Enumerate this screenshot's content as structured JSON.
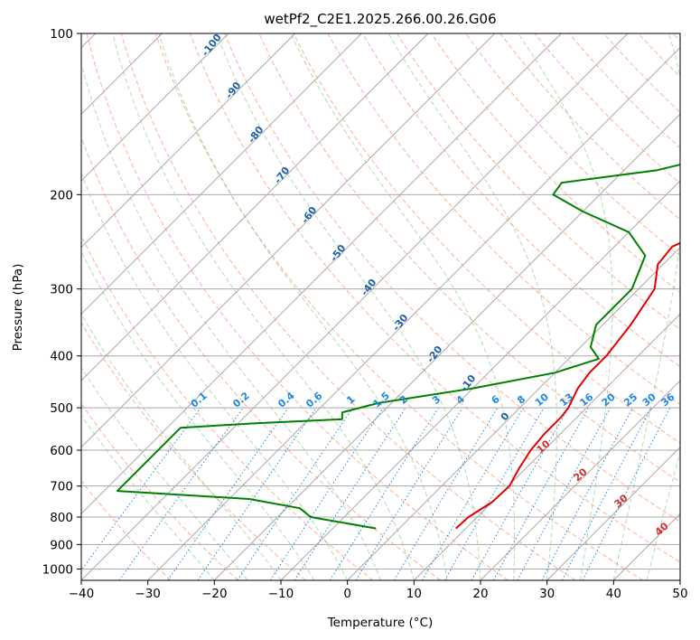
{
  "chart_data": {
    "type": "skew-t log-p",
    "title": "wetPf2_C2E1.2025.266.00.26.G06",
    "xlabel": "Temperature (°C)",
    "ylabel": "Pressure (hPa)",
    "xlim": [
      -40,
      50
    ],
    "ylim": [
      1050,
      100
    ],
    "y_scale": "log",
    "x_ticks": [
      -40,
      -30,
      -20,
      -10,
      0,
      10,
      20,
      30,
      40,
      50
    ],
    "y_ticks": [
      100,
      200,
      300,
      400,
      500,
      600,
      700,
      800,
      900,
      1000
    ],
    "grid": true,
    "colors": {
      "temperature": "#e50000",
      "dewpoint": "#008000",
      "isotherm": "#a0a0a0",
      "dry_adiabat": "#ff9e7a",
      "moist_adiabat": "#6fbf6f",
      "mixing_ratio": "#1e88e5",
      "isohume": "#c8a27a",
      "dry_label": "#1f5fa8",
      "sat_label": "#d32f2f"
    },
    "mixing_ratio_labels": [
      "0.1",
      "0.2",
      "0.4",
      "0.6",
      "1",
      "1.5",
      "2",
      "3",
      "4",
      "6",
      "8",
      "10",
      "13",
      "16",
      "20",
      "25",
      "30",
      "36"
    ],
    "dry_adiabat_labels": [
      "-100",
      "-90",
      "-80",
      "-70",
      "-60",
      "-50",
      "-40",
      "-30",
      "-20",
      "-10",
      "0"
    ],
    "saturated_labels": [
      "10",
      "20",
      "30",
      "40"
    ],
    "series": [
      {
        "role": "temperature",
        "color": "#e50000",
        "points": [
          {
            "p": 840,
            "t": 8.5
          },
          {
            "p": 800,
            "t": 8.7
          },
          {
            "p": 750,
            "t": 10.0
          },
          {
            "p": 700,
            "t": 10.2
          },
          {
            "p": 650,
            "t": 9.0
          },
          {
            "p": 600,
            "t": 8.0
          },
          {
            "p": 560,
            "t": 7.6
          },
          {
            "p": 520,
            "t": 7.6
          },
          {
            "p": 500,
            "t": 7.3
          },
          {
            "p": 460,
            "t": 5.8
          },
          {
            "p": 430,
            "t": 5.2
          },
          {
            "p": 400,
            "t": 5.2
          },
          {
            "p": 350,
            "t": 4.2
          },
          {
            "p": 300,
            "t": 2.4
          },
          {
            "p": 270,
            "t": -0.8
          },
          {
            "p": 250,
            "t": -1.3
          },
          {
            "p": 230,
            "t": 2.2
          },
          {
            "p": 200,
            "t": 10.0
          },
          {
            "p": 180,
            "t": 11.5
          },
          {
            "p": 160,
            "t": 9.0
          },
          {
            "p": 145,
            "t": 11.0
          },
          {
            "p": 130,
            "t": 17.0
          },
          {
            "p": 115,
            "t": 21.0
          },
          {
            "p": 100,
            "t": 22.5
          }
        ]
      },
      {
        "role": "dewpoint",
        "color": "#008000",
        "points": [
          {
            "p": 840,
            "t": -3.5
          },
          {
            "p": 800,
            "t": -15.0
          },
          {
            "p": 770,
            "t": -18.0
          },
          {
            "p": 740,
            "t": -27.0
          },
          {
            "p": 715,
            "t": -48.0
          },
          {
            "p": 545,
            "t": -48.0
          },
          {
            "p": 535,
            "t": -38.0
          },
          {
            "p": 525,
            "t": -25.0
          },
          {
            "p": 510,
            "t": -26.0
          },
          {
            "p": 490,
            "t": -22.0
          },
          {
            "p": 460,
            "t": -10.0
          },
          {
            "p": 430,
            "t": 0.0
          },
          {
            "p": 405,
            "t": 4.5
          },
          {
            "p": 385,
            "t": 1.5
          },
          {
            "p": 350,
            "t": -1.0
          },
          {
            "p": 300,
            "t": -1.0
          },
          {
            "p": 260,
            "t": -4.0
          },
          {
            "p": 235,
            "t": -10.0
          },
          {
            "p": 215,
            "t": -20.0
          },
          {
            "p": 200,
            "t": -27.0
          },
          {
            "p": 190,
            "t": -27.5
          },
          {
            "p": 180,
            "t": -15.0
          },
          {
            "p": 165,
            "t": -5.5
          },
          {
            "p": 145,
            "t": -5.0
          },
          {
            "p": 125,
            "t": -2.0
          },
          {
            "p": 110,
            "t": -1.0
          },
          {
            "p": 100,
            "t": 0.5
          }
        ]
      }
    ]
  }
}
